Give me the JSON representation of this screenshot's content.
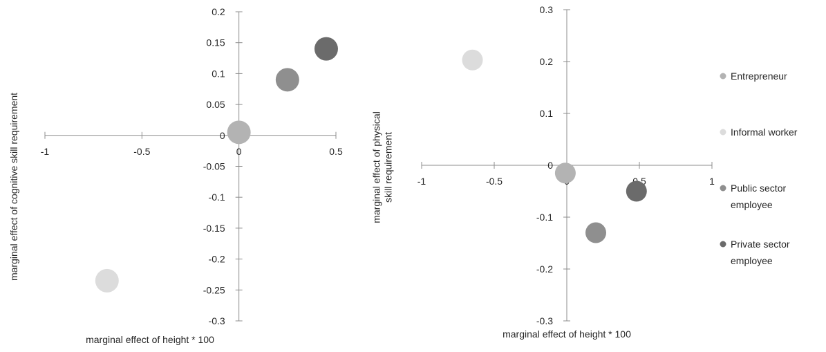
{
  "chart_data": [
    {
      "type": "scatter",
      "title": "",
      "xlabel": "marginal effect of height * 100",
      "ylabel": "marginal effect of cognitive skill requirement",
      "xlim": [
        -1,
        0.5
      ],
      "ylim": [
        -0.3,
        0.2
      ],
      "x_ticks": [
        -1,
        -0.5,
        0,
        0.5
      ],
      "x_tick_labels": [
        "-1",
        "-0.5",
        "0",
        "0.5"
      ],
      "y_ticks": [
        0.2,
        0.15,
        0.1,
        0.05,
        0,
        -0.05,
        -0.1,
        -0.15,
        -0.2,
        -0.25,
        -0.3
      ],
      "y_tick_labels": [
        "0.2",
        "0.15",
        "0.1",
        "0.05",
        "0",
        "-0.05",
        "-0.1",
        "-0.15",
        "-0.2",
        "-0.25",
        "-0.3"
      ],
      "grid": false,
      "series": [
        {
          "name": "Entrepreneur",
          "color": "#b3b3b3",
          "points": [
            {
              "x": 0.0,
              "y": 0.005
            }
          ]
        },
        {
          "name": "Informal worker",
          "color": "#dcdcdc",
          "points": [
            {
              "x": -0.68,
              "y": -0.235
            }
          ]
        },
        {
          "name": "Public sector employee",
          "color": "#8f8f8f",
          "points": [
            {
              "x": 0.25,
              "y": 0.09
            }
          ]
        },
        {
          "name": "Private sector employee",
          "color": "#6b6b6b",
          "points": [
            {
              "x": 0.45,
              "y": 0.14
            }
          ]
        }
      ]
    },
    {
      "type": "scatter",
      "title": "",
      "xlabel": "marginal effect of height * 100",
      "ylabel": "marginal effect of physical skill requirement",
      "xlim": [
        -1,
        1
      ],
      "ylim": [
        -0.3,
        0.3
      ],
      "x_ticks": [
        -1,
        -0.5,
        0,
        0.5,
        1
      ],
      "x_tick_labels": [
        "-1",
        "-0.5",
        "0",
        "0.5",
        "1"
      ],
      "y_ticks": [
        0.3,
        0.2,
        0.1,
        0,
        -0.1,
        -0.2,
        -0.3
      ],
      "y_tick_labels": [
        "0.3",
        "0.2",
        "0.1",
        "0",
        "-0.1",
        "-0.2",
        "-0.3"
      ],
      "grid": false,
      "legend": {
        "position": "right",
        "entries": [
          {
            "label": "Entrepreneur",
            "color": "#b3b3b3"
          },
          {
            "label": "Informal worker",
            "color": "#dcdcdc"
          },
          {
            "label": "Public sector employee",
            "color": "#8f8f8f"
          },
          {
            "label": "Private sector employee",
            "color": "#6b6b6b"
          }
        ]
      },
      "series": [
        {
          "name": "Entrepreneur",
          "color": "#b3b3b3",
          "points": [
            {
              "x": -0.01,
              "y": -0.015
            }
          ]
        },
        {
          "name": "Informal worker",
          "color": "#dcdcdc",
          "points": [
            {
              "x": -0.65,
              "y": 0.203
            }
          ]
        },
        {
          "name": "Public sector employee",
          "color": "#8f8f8f",
          "points": [
            {
              "x": 0.2,
              "y": -0.13
            }
          ]
        },
        {
          "name": "Private sector employee",
          "color": "#6b6b6b",
          "points": [
            {
              "x": 0.48,
              "y": -0.05
            }
          ]
        }
      ]
    }
  ]
}
